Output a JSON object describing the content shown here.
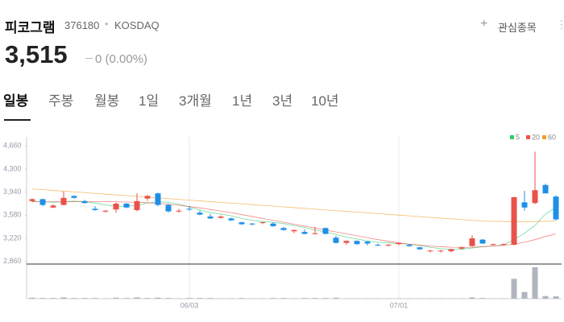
{
  "header": {
    "name": "피코그램",
    "code": "376180",
    "market": "KOSDAQ",
    "watch": "관심종목"
  },
  "price": "3,515",
  "change": "0 (0.00%)",
  "tabs": [
    "일봉",
    "주봉",
    "월봉",
    "1일",
    "3개월",
    "1년",
    "3년",
    "10년"
  ],
  "chart_data": {
    "type": "candlestick",
    "categories": [
      null,
      null,
      null,
      null,
      null,
      null,
      null,
      null,
      null,
      null,
      null,
      null,
      null,
      null,
      null,
      "06/03",
      null,
      null,
      null,
      null,
      null,
      null,
      null,
      null,
      null,
      null,
      null,
      null,
      null,
      null,
      null,
      null,
      null,
      null,
      null,
      "07/01",
      null,
      null,
      null,
      null,
      null,
      null,
      null,
      null,
      null,
      null,
      null,
      null,
      null,
      null,
      null
    ],
    "ohlc": [
      [
        3800,
        3840,
        3780,
        3830
      ],
      [
        3830,
        3840,
        3720,
        3740
      ],
      [
        3700,
        3750,
        3690,
        3730
      ],
      [
        3740,
        3950,
        3730,
        3850
      ],
      [
        3880,
        3890,
        3840,
        3850
      ],
      [
        3800,
        3820,
        3760,
        3770
      ],
      [
        3680,
        3720,
        3650,
        3660
      ],
      [
        3640,
        3660,
        3620,
        3650
      ],
      [
        3670,
        3780,
        3620,
        3760
      ],
      [
        3760,
        3770,
        3690,
        3700
      ],
      [
        3660,
        3920,
        3640,
        3800
      ],
      [
        3840,
        3900,
        3800,
        3880
      ],
      [
        3920,
        3930,
        3720,
        3740
      ],
      [
        3740,
        3760,
        3620,
        3640
      ],
      [
        3640,
        3680,
        3620,
        3650
      ],
      [
        3680,
        3720,
        3650,
        3670
      ],
      [
        3620,
        3650,
        3580,
        3590
      ],
      [
        3560,
        3600,
        3520,
        3530
      ],
      [
        3540,
        3580,
        3530,
        3560
      ],
      [
        3530,
        3540,
        3490,
        3500
      ],
      [
        3470,
        3480,
        3430,
        3440
      ],
      [
        3450,
        3460,
        3420,
        3440
      ],
      [
        3460,
        3480,
        3440,
        3470
      ],
      [
        3450,
        3470,
        3400,
        3410
      ],
      [
        3380,
        3400,
        3340,
        3350
      ],
      [
        3330,
        3360,
        3300,
        3350
      ],
      [
        3320,
        3360,
        3280,
        3290
      ],
      [
        3290,
        3400,
        3280,
        3300
      ],
      [
        3380,
        3390,
        3280,
        3290
      ],
      [
        3230,
        3260,
        3140,
        3150
      ],
      [
        3150,
        3190,
        3120,
        3180
      ],
      [
        3180,
        3190,
        3120,
        3130
      ],
      [
        3170,
        3180,
        3110,
        3140
      ],
      [
        3120,
        3140,
        3100,
        3110
      ],
      [
        3110,
        3130,
        3090,
        3120
      ],
      [
        3130,
        3160,
        3110,
        3150
      ],
      [
        3120,
        3130,
        3090,
        3100
      ],
      [
        3080,
        3090,
        3040,
        3050
      ],
      [
        3020,
        3040,
        3000,
        3030
      ],
      [
        3020,
        3040,
        3000,
        3030
      ],
      [
        3020,
        3060,
        3000,
        3050
      ],
      [
        3060,
        3090,
        3040,
        3080
      ],
      [
        3100,
        3270,
        3090,
        3220
      ],
      [
        3200,
        3210,
        3130,
        3140
      ],
      [
        3120,
        3140,
        3110,
        3130
      ],
      [
        3120,
        3140,
        3110,
        3130
      ],
      [
        3120,
        3870,
        3110,
        3860
      ],
      [
        3780,
        3960,
        3650,
        3700
      ],
      [
        3770,
        4570,
        3750,
        3970
      ],
      [
        4050,
        4070,
        3930,
        3920
      ],
      [
        3870,
        3890,
        3500,
        3515
      ]
    ],
    "volume": [
      3,
      2,
      2,
      4,
      2,
      2,
      2,
      1,
      3,
      2,
      4,
      2,
      3,
      2,
      1,
      2,
      2,
      2,
      1,
      1,
      2,
      1,
      1,
      2,
      2,
      1,
      2,
      2,
      2,
      3,
      1,
      1,
      1,
      1,
      1,
      1,
      1,
      1,
      1,
      1,
      1,
      1,
      4,
      2,
      1,
      1,
      60,
      20,
      95,
      8,
      7
    ],
    "moving_averages": [
      {
        "name": "5",
        "color": "#2ecc71",
        "values": [
          3800,
          3790,
          3780,
          3790,
          3800,
          3790,
          3770,
          3740,
          3720,
          3720,
          3730,
          3770,
          3790,
          3780,
          3750,
          3710,
          3660,
          3620,
          3600,
          3570,
          3530,
          3500,
          3480,
          3470,
          3450,
          3420,
          3390,
          3350,
          3320,
          3280,
          3240,
          3210,
          3180,
          3160,
          3150,
          3140,
          3130,
          3110,
          3080,
          3060,
          3050,
          3050,
          3070,
          3090,
          3100,
          3120,
          3200,
          3300,
          3420,
          3600,
          3700
        ]
      },
      {
        "name": "20",
        "color": "#ef5350",
        "values": [
          3790,
          3790,
          3790,
          3790,
          3790,
          3790,
          3790,
          3790,
          3790,
          3785,
          3780,
          3775,
          3765,
          3750,
          3735,
          3715,
          3695,
          3670,
          3645,
          3620,
          3590,
          3560,
          3530,
          3500,
          3470,
          3440,
          3410,
          3380,
          3350,
          3320,
          3290,
          3260,
          3230,
          3200,
          3175,
          3150,
          3130,
          3115,
          3100,
          3090,
          3082,
          3080,
          3082,
          3090,
          3100,
          3110,
          3130,
          3160,
          3200,
          3250,
          3290
        ]
      },
      {
        "name": "60",
        "color": "#f0a030",
        "values": [
          3990,
          3978,
          3966,
          3955,
          3943,
          3932,
          3920,
          3908,
          3897,
          3885,
          3873,
          3862,
          3850,
          3838,
          3827,
          3815,
          3803,
          3792,
          3780,
          3768,
          3757,
          3745,
          3733,
          3722,
          3710,
          3698,
          3687,
          3675,
          3663,
          3652,
          3640,
          3628,
          3617,
          3605,
          3593,
          3582,
          3570,
          3558,
          3547,
          3535,
          3523,
          3512,
          3500,
          3492,
          3486,
          3482,
          3480,
          3480,
          3482,
          3485,
          3490
        ]
      }
    ],
    "up_color": "#e9524a",
    "down_color": "#1e8fe6",
    "ylim": [
      2820,
      4800
    ],
    "yticks": [
      {
        "value": 2860,
        "label": "2,860"
      },
      {
        "value": 3220,
        "label": "3,220"
      },
      {
        "value": 3580,
        "label": "3,580"
      },
      {
        "value": 3940,
        "label": "3,940"
      },
      {
        "value": 4300,
        "label": "4,300"
      },
      {
        "value": 4660,
        "label": "4,660"
      }
    ]
  }
}
